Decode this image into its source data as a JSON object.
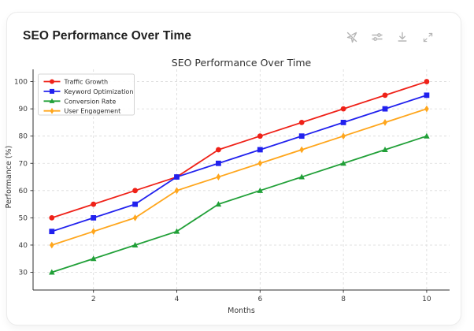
{
  "card": {
    "title": "SEO Performance Over Time",
    "toolbar": {
      "icons": [
        "navigation-off",
        "tune-sliders",
        "download",
        "expand-diagonal"
      ]
    }
  },
  "colors": {
    "card_border": "#ebebeb",
    "toolbar_icon": "#b6b6b6",
    "grid": "#d9d9d9",
    "spine": "#2f2f2f",
    "title_text": "#333333",
    "tick_text": "#3a3a3a",
    "legend_border": "#c9c9c9"
  },
  "chart_data": {
    "type": "line",
    "title": "SEO Performance Over Time",
    "xlabel": "Months",
    "ylabel": "Performance (%)",
    "x": [
      1,
      2,
      3,
      4,
      5,
      6,
      7,
      8,
      9,
      10
    ],
    "series": [
      {
        "name": "Traffic Growth",
        "color": "#ef2118",
        "marker": "circle",
        "values": [
          50,
          55,
          60,
          65,
          75,
          80,
          85,
          90,
          95,
          100
        ]
      },
      {
        "name": "Keyword Optimization",
        "color": "#2121ee",
        "marker": "square",
        "values": [
          45,
          50,
          55,
          65,
          70,
          75,
          80,
          85,
          90,
          95
        ]
      },
      {
        "name": "Conversion Rate",
        "color": "#21a038",
        "marker": "triangle-up",
        "values": [
          30,
          35,
          40,
          45,
          55,
          60,
          65,
          70,
          75,
          80
        ]
      },
      {
        "name": "User Engagement",
        "color": "#ffa61c",
        "marker": "diamond",
        "values": [
          40,
          45,
          50,
          60,
          65,
          70,
          75,
          80,
          85,
          90
        ]
      }
    ],
    "xticks": [
      2,
      4,
      6,
      8,
      10
    ],
    "yticks": [
      30,
      40,
      50,
      60,
      70,
      80,
      90,
      100
    ],
    "xlim": [
      0.55,
      10.55
    ],
    "ylim": [
      23.5,
      104.5
    ],
    "grid": true,
    "grid_style": "dashed",
    "legend_position": "upper left"
  }
}
